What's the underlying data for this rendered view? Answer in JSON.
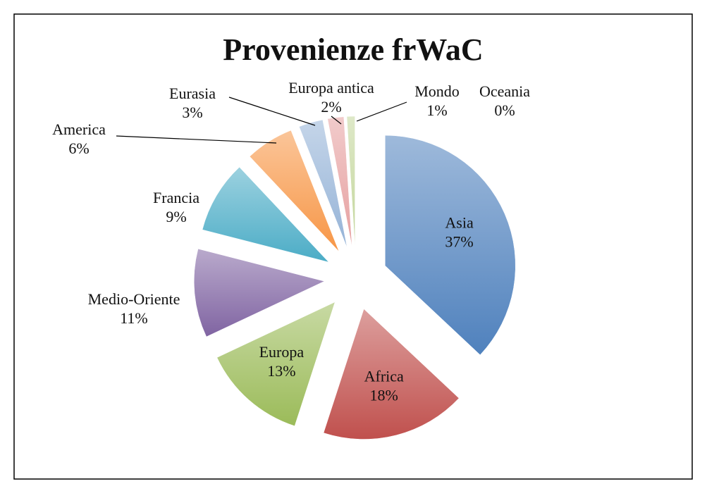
{
  "chart_data": {
    "type": "pie",
    "title": "Provenienze frWaC",
    "categories": [
      "Asia",
      "Africa",
      "Europa",
      "Medio-Oriente",
      "Francia",
      "America",
      "Eurasia",
      "Europa antica",
      "Mondo",
      "Oceania"
    ],
    "values": [
      37,
      18,
      13,
      11,
      9,
      6,
      3,
      2,
      1,
      0
    ],
    "value_labels": [
      "37%",
      "18%",
      "13%",
      "11%",
      "9%",
      "6%",
      "3%",
      "2%",
      "1%",
      "0%"
    ],
    "colors": [
      "#4f81bd",
      "#c0504d",
      "#9bbb59",
      "#8064a2",
      "#4bacc6",
      "#f79646",
      "#95b3d7",
      "#e6a0a0",
      "#c3d69b",
      "#b3a2c7"
    ]
  }
}
